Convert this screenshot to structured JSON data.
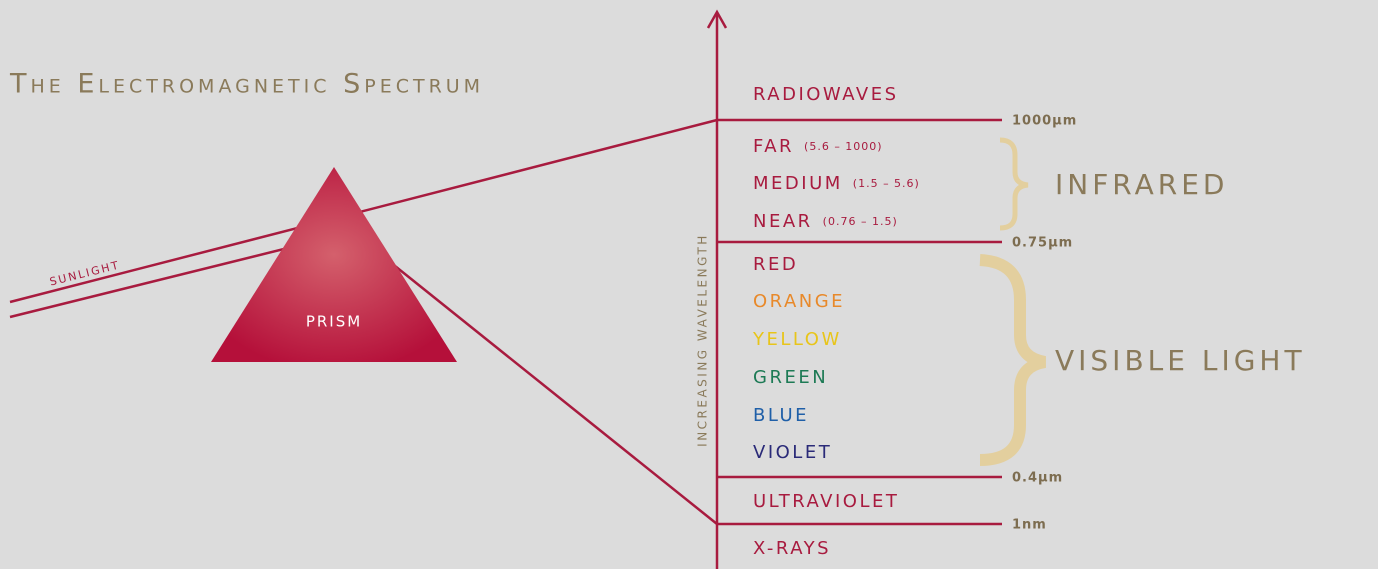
{
  "title": "The Electromagnetic Spectrum",
  "sunlight": "SUNLIGHT",
  "prism": "PRISM",
  "axis_label": "INCREASING WAVELENGTH",
  "bands": [
    {
      "name": "RADIOWAVES",
      "color": "#a81b3f"
    },
    {
      "name": "FAR",
      "range": "(5.6 – 1000)",
      "color": "#a81b3f"
    },
    {
      "name": "MEDIUM",
      "range": "(1.5 – 5.6)",
      "color": "#a81b3f"
    },
    {
      "name": "NEAR",
      "range": "(0.76 – 1.5)",
      "color": "#a81b3f"
    },
    {
      "name": "RED",
      "color": "#a81b3f"
    },
    {
      "name": "ORANGE",
      "color": "#e8892a"
    },
    {
      "name": "YELLOW",
      "color": "#e8c51a"
    },
    {
      "name": "GREEN",
      "color": "#1d7a55"
    },
    {
      "name": "BLUE",
      "color": "#1f5fa8"
    },
    {
      "name": "VIOLET",
      "color": "#2a2a78"
    },
    {
      "name": "ULTRAVIOLET",
      "color": "#a81b3f"
    },
    {
      "name": "X-RAYS",
      "color": "#a81b3f"
    }
  ],
  "boundaries": [
    "1000µm",
    "0.75µm",
    "0.4µm",
    "1nm"
  ],
  "groups": [
    {
      "label": "INFRARED"
    },
    {
      "label": "VISIBLE LIGHT"
    }
  ]
}
